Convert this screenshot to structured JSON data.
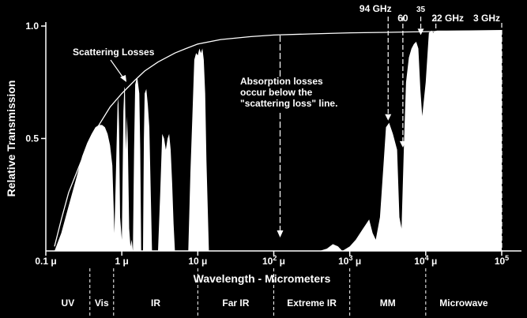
{
  "chart_data": {
    "type": "area",
    "title": "",
    "xlabel": "Wavelength - Micrometers",
    "ylabel": "Relative Transmission",
    "x_scale": "log",
    "xlim": [
      0.1,
      100000
    ],
    "ylim": [
      0,
      1.0
    ],
    "grid": false,
    "x_ticks": [
      {
        "value": 0.1,
        "base": "0.1 μ",
        "exp": ""
      },
      {
        "value": 1,
        "base": "1 μ",
        "exp": ""
      },
      {
        "value": 10,
        "base": "10 μ",
        "exp": ""
      },
      {
        "value": 100,
        "base": "10",
        "exp": "2",
        "unit": " μ"
      },
      {
        "value": 1000,
        "base": "10",
        "exp": "3",
        "unit": " μ"
      },
      {
        "value": 10000,
        "base": "10",
        "exp": "4",
        "unit": " μ"
      },
      {
        "value": 100000,
        "base": "10",
        "exp": "5",
        "unit": ""
      }
    ],
    "y_ticks": [
      {
        "value": 1.0,
        "label": "1.0"
      },
      {
        "value": 0.5,
        "label": "0.5"
      }
    ],
    "series": [
      {
        "name": "",
        "style": "filled",
        "color": "#ffffff",
        "x": [
          0.13,
          0.16,
          0.2,
          0.25,
          0.3,
          0.35,
          0.4,
          0.45,
          0.5,
          0.55,
          0.6,
          0.65,
          0.7,
          0.75,
          0.78,
          0.8,
          0.83,
          0.88,
          0.9,
          0.92,
          0.95,
          1.0,
          1.05,
          1.08,
          1.1,
          1.13,
          1.17,
          1.2,
          1.25,
          1.3,
          1.35,
          1.4,
          1.45,
          1.5,
          1.55,
          1.6,
          1.7,
          1.75,
          1.8,
          1.85,
          1.9,
          1.95,
          2.0,
          2.1,
          2.2,
          2.3,
          2.5,
          2.6,
          2.7,
          2.8,
          2.9,
          3.0,
          3.2,
          3.4,
          3.6,
          3.8,
          4.0,
          4.2,
          4.4,
          4.6,
          4.8,
          5.0,
          5.3,
          6.0,
          7.0,
          7.5,
          8.0,
          8.5,
          9.0,
          9.5,
          10.0,
          10.5,
          11.0,
          11.5,
          12.0,
          12.5,
          13.0,
          14.0,
          15.0,
          20,
          50,
          100,
          200,
          400,
          500,
          600,
          700,
          800,
          1000,
          1200,
          1500,
          1800,
          2000,
          2200,
          2500,
          2800,
          3000,
          3300,
          3700,
          4200,
          4500,
          4800,
          5200,
          5500,
          6000,
          6500,
          7000,
          7500,
          8000,
          8500,
          9000,
          10000,
          11000,
          12000,
          12500,
          13000,
          14000,
          15000,
          20000,
          30000,
          50000,
          80000,
          100000
        ],
        "y": [
          0.0,
          0.08,
          0.2,
          0.32,
          0.42,
          0.48,
          0.52,
          0.55,
          0.56,
          0.56,
          0.55,
          0.52,
          0.47,
          0.38,
          0.2,
          0.08,
          0.3,
          0.65,
          0.68,
          0.55,
          0.15,
          0.05,
          0.62,
          0.73,
          0.72,
          0.45,
          0.6,
          0.48,
          0.1,
          0.02,
          0.05,
          0.0,
          0.45,
          0.74,
          0.76,
          0.77,
          0.7,
          0.45,
          0.0,
          0.0,
          0.0,
          0.5,
          0.7,
          0.72,
          0.65,
          0.55,
          0.0,
          0.0,
          0.0,
          0.0,
          0.0,
          0.0,
          0.25,
          0.52,
          0.5,
          0.45,
          0.5,
          0.52,
          0.45,
          0.3,
          0.12,
          0.0,
          0.0,
          0.0,
          0.0,
          0.0,
          0.35,
          0.6,
          0.85,
          0.88,
          0.87,
          0.9,
          0.88,
          0.9,
          0.85,
          0.7,
          0.4,
          0.0,
          0.0,
          0.0,
          0.0,
          0.0,
          0.0,
          0.0,
          0.01,
          0.03,
          0.02,
          0.0,
          0.02,
          0.05,
          0.1,
          0.14,
          0.08,
          0.05,
          0.15,
          0.4,
          0.55,
          0.57,
          0.52,
          0.45,
          0.15,
          0.1,
          0.5,
          0.75,
          0.86,
          0.9,
          0.92,
          0.93,
          0.9,
          0.72,
          0.6,
          0.75,
          0.97,
          0.98,
          0.97,
          0.975,
          0.98,
          0.98,
          0.98,
          0.98,
          0.98,
          0.98,
          0.98
        ]
      },
      {
        "name": "Scattering Losses",
        "style": "line",
        "color": "#ffffff",
        "x": [
          0.13,
          0.16,
          0.2,
          0.3,
          0.4,
          0.5,
          0.7,
          1.0,
          1.5,
          2.0,
          3.0,
          5.0,
          7.0,
          10,
          20,
          50,
          100,
          300,
          1000,
          3000,
          10000,
          30000,
          100000
        ],
        "y": [
          0.02,
          0.14,
          0.26,
          0.41,
          0.5,
          0.56,
          0.64,
          0.7,
          0.76,
          0.8,
          0.84,
          0.88,
          0.9,
          0.92,
          0.94,
          0.953,
          0.96,
          0.965,
          0.97,
          0.972,
          0.975,
          0.978,
          0.98
        ]
      }
    ],
    "frequency_markers": [
      {
        "label": "94 GHz",
        "x": 3200,
        "y_arrow": 0.58,
        "style": "arrow"
      },
      {
        "label": "60",
        "x": 5000,
        "y_arrow": 0.46,
        "style": "arrow"
      },
      {
        "label": "35",
        "x": 8600,
        "y_arrow": 0.96,
        "style": "arrow"
      },
      {
        "label": "22 GHz",
        "x": 13600,
        "y_arrow": 0.8,
        "style": "arrow"
      },
      {
        "label": "3 GHz",
        "x": 100000,
        "y_arrow": 0.98,
        "style": "line"
      }
    ],
    "annotations": {
      "scattering_label": "Scattering Losses",
      "absorption_lines": [
        "Absorption losses",
        "occur below the",
        "\"scattering loss\" line."
      ]
    },
    "regions": [
      {
        "label": "UV",
        "x_start": 0.1,
        "x_end": 0.38
      },
      {
        "label": "Vis",
        "x_start": 0.38,
        "x_end": 0.78
      },
      {
        "label": "IR",
        "x_start": 0.78,
        "x_end": 10
      },
      {
        "label": "Far IR",
        "x_start": 10,
        "x_end": 100
      },
      {
        "label": "Extreme IR",
        "x_start": 100,
        "x_end": 1000
      },
      {
        "label": "MM",
        "x_start": 1000,
        "x_end": 10000
      },
      {
        "label": "Microwave",
        "x_start": 10000,
        "x_end": 100000
      }
    ]
  }
}
